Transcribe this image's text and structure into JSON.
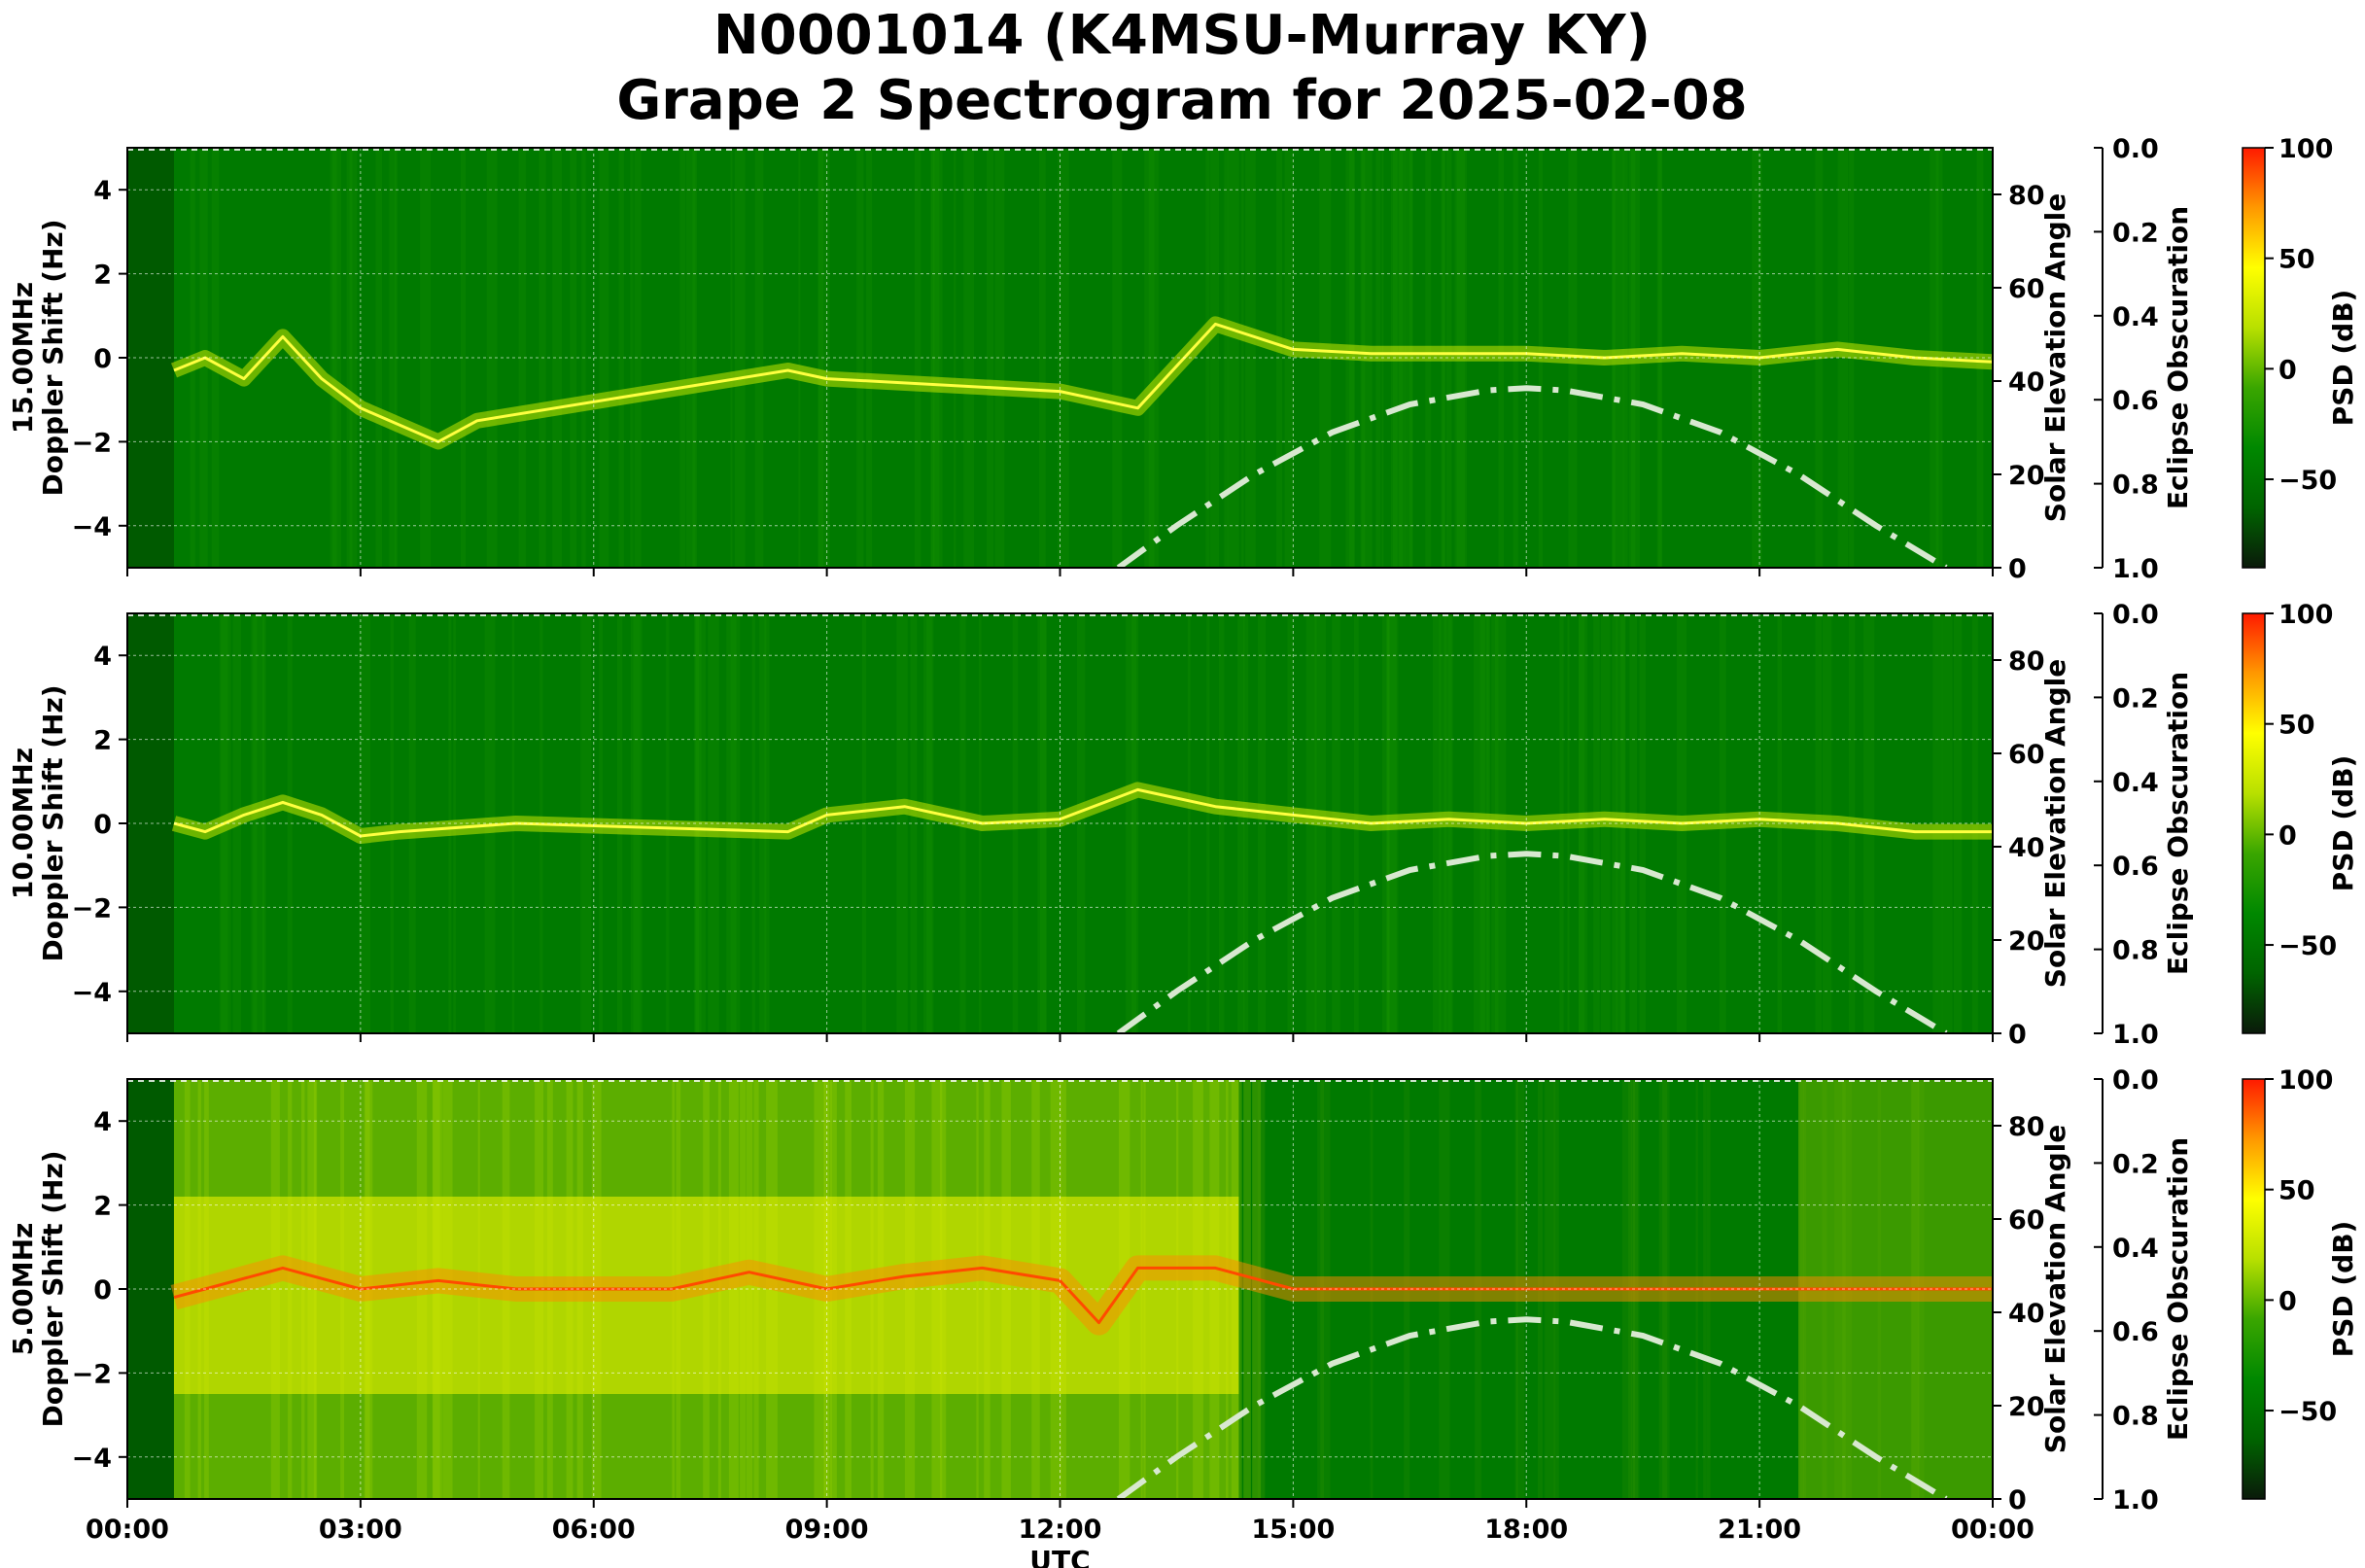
{
  "title_line1": "N0001014 (K4MSU-Murray KY)",
  "title_line2": "Grape 2 Spectrogram for 2025-02-08",
  "colors": {
    "background": "#007a00",
    "grid": "#ffffff",
    "solar_curve": "#d8e8d0",
    "colormap": [
      "#0a1a0a",
      "#006400",
      "#008800",
      "#3aa600",
      "#b8e000",
      "#ffff00",
      "#ff9800",
      "#ff1a00"
    ]
  },
  "chart_data": [
    {
      "type": "heatmap",
      "frequency": "15.00MHz",
      "ylabel": "15.00MHz\nDoppler Shift (Hz)",
      "xlabel": "",
      "ylim": [
        -5,
        5
      ],
      "yticks": [
        4,
        2,
        0,
        -2,
        -4
      ],
      "ytick_labels": [
        "4",
        "2",
        "0",
        "−2",
        "−4"
      ],
      "y2label": "Solar Elevation Angle",
      "y2lim": [
        0,
        90
      ],
      "y2ticks": [
        "0",
        "20",
        "40",
        "60",
        "80"
      ],
      "y3label": "Eclipse Obscuration",
      "y3ticks": [
        "0.0",
        "0.2",
        "0.4",
        "0.6",
        "0.8",
        "1.0"
      ],
      "colorbar_label": "PSD (dB)",
      "colorbar_ticks": [
        "100",
        "50",
        "0",
        "−50"
      ],
      "colorbar_range": [
        -90,
        100
      ],
      "doppler_trace": {
        "hours": [
          0.6,
          1,
          1.5,
          2,
          2.5,
          3,
          3.5,
          4,
          4.5,
          8.5,
          9,
          12,
          13,
          14,
          15,
          16,
          17,
          18,
          19,
          20,
          21,
          22,
          23,
          24
        ],
        "hz": [
          -0.3,
          0,
          -0.5,
          0.5,
          -0.5,
          -1.2,
          -1.6,
          -2,
          -1.5,
          -0.3,
          -0.5,
          -0.8,
          -1.2,
          0.8,
          0.2,
          0.1,
          0.1,
          0.1,
          0.0,
          0.1,
          0.0,
          0.2,
          0.0,
          -0.1
        ]
      },
      "solar_elevation": {
        "hours": [
          12.75,
          13.5,
          14.5,
          15.5,
          16.5,
          17.5,
          18.0,
          18.5,
          19.5,
          20.5,
          21.5,
          22.5,
          23.4
        ],
        "deg": [
          0,
          9,
          20,
          29,
          35,
          38,
          38.5,
          38,
          35,
          29,
          20,
          9,
          0
        ]
      },
      "grid": true
    },
    {
      "type": "heatmap",
      "frequency": "10.00MHz",
      "ylabel": "10.00MHz\nDoppler Shift (Hz)",
      "xlabel": "",
      "ylim": [
        -5,
        5
      ],
      "yticks": [
        4,
        2,
        0,
        -2,
        -4
      ],
      "ytick_labels": [
        "4",
        "2",
        "0",
        "−2",
        "−4"
      ],
      "y2label": "Solar Elevation Angle",
      "y2lim": [
        0,
        90
      ],
      "y2ticks": [
        "0",
        "20",
        "40",
        "60",
        "80"
      ],
      "y3label": "Eclipse Obscuration",
      "y3ticks": [
        "0.0",
        "0.2",
        "0.4",
        "0.6",
        "0.8",
        "1.0"
      ],
      "colorbar_label": "PSD (dB)",
      "colorbar_ticks": [
        "100",
        "50",
        "0",
        "−50"
      ],
      "colorbar_range": [
        -90,
        100
      ],
      "doppler_trace": {
        "hours": [
          0.6,
          1,
          1.5,
          2,
          2.5,
          3,
          3.5,
          5,
          8.5,
          9,
          10,
          11,
          12,
          13,
          14,
          15,
          16,
          17,
          18,
          19,
          20,
          21,
          22,
          23,
          24
        ],
        "hz": [
          0,
          -0.2,
          0.2,
          0.5,
          0.2,
          -0.3,
          -0.2,
          0,
          -0.2,
          0.2,
          0.4,
          0.0,
          0.1,
          0.8,
          0.4,
          0.2,
          0.0,
          0.1,
          0.0,
          0.1,
          0.0,
          0.1,
          0.0,
          -0.2,
          -0.2
        ]
      },
      "solar_elevation": {
        "hours": [
          12.75,
          13.5,
          14.5,
          15.5,
          16.5,
          17.5,
          18.0,
          18.5,
          19.5,
          20.5,
          21.5,
          22.5,
          23.4
        ],
        "deg": [
          0,
          9,
          20,
          29,
          35,
          38,
          38.5,
          38,
          35,
          29,
          20,
          9,
          0
        ]
      },
      "grid": true
    },
    {
      "type": "heatmap",
      "frequency": "5.00MHz",
      "ylabel": "5.00MHz\nDoppler Shift (Hz)",
      "xlabel": "UTC",
      "xticks": [
        "00:00",
        "03:00",
        "06:00",
        "09:00",
        "12:00",
        "15:00",
        "18:00",
        "21:00",
        "00:00"
      ],
      "ylim": [
        -5,
        5
      ],
      "yticks": [
        4,
        2,
        0,
        -2,
        -4
      ],
      "ytick_labels": [
        "4",
        "2",
        "0",
        "−2",
        "−4"
      ],
      "y2label": "Solar Elevation Angle",
      "y2lim": [
        0,
        90
      ],
      "y2ticks": [
        "0",
        "20",
        "40",
        "60",
        "80"
      ],
      "y3label": "Eclipse Obscuration",
      "y3ticks": [
        "0.0",
        "0.2",
        "0.4",
        "0.6",
        "0.8",
        "1.0"
      ],
      "colorbar_label": "PSD (dB)",
      "colorbar_ticks": [
        "100",
        "50",
        "0",
        "−50"
      ],
      "colorbar_range": [
        -90,
        100
      ],
      "doppler_trace": {
        "hours": [
          0.6,
          1,
          2,
          3,
          4,
          5,
          6,
          7,
          8,
          9,
          10,
          11,
          12,
          12.5,
          13,
          14,
          15,
          16,
          18,
          21,
          24
        ],
        "hz": [
          -0.2,
          0.0,
          0.5,
          0.0,
          0.2,
          0.0,
          0.0,
          0.0,
          0.4,
          0.0,
          0.3,
          0.5,
          0.2,
          -0.8,
          0.5,
          0.5,
          0.0,
          0.0,
          0.0,
          0.0,
          0.0
        ]
      },
      "solar_elevation": {
        "hours": [
          12.75,
          13.5,
          14.5,
          15.5,
          16.5,
          17.5,
          18.0,
          18.5,
          19.5,
          20.5,
          21.5,
          22.5,
          23.4
        ],
        "deg": [
          0,
          9,
          20,
          29,
          35,
          38,
          38.5,
          38,
          35,
          29,
          20,
          9,
          0
        ]
      },
      "grid": true
    }
  ]
}
